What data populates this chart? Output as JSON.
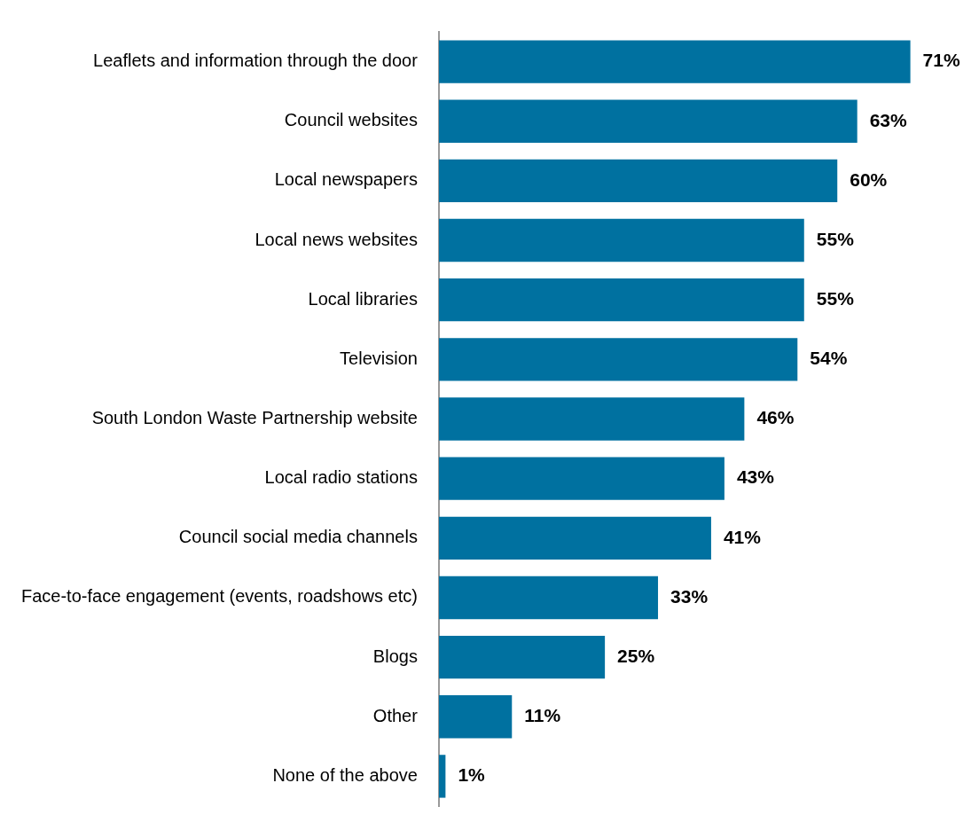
{
  "chart_data": {
    "type": "bar",
    "orientation": "horizontal",
    "categories": [
      "Leaflets and information through the door",
      "Council websites",
      "Local newspapers",
      "Local news websites",
      "Local libraries",
      "Television",
      "South London Waste Partnership website",
      "Local radio stations",
      "Council social media channels",
      "Face-to-face engagement (events, roadshows etc)",
      "Blogs",
      "Other",
      "None of the above"
    ],
    "values": [
      71,
      63,
      60,
      55,
      55,
      54,
      46,
      43,
      41,
      33,
      25,
      11,
      1
    ],
    "value_labels": [
      "71%",
      "63%",
      "60%",
      "55%",
      "55%",
      "54%",
      "46%",
      "43%",
      "41%",
      "33%",
      "25%",
      "11%",
      "1%"
    ],
    "color": "#0071a0",
    "grid": false,
    "legend": false,
    "tick_labels": "y"
  }
}
